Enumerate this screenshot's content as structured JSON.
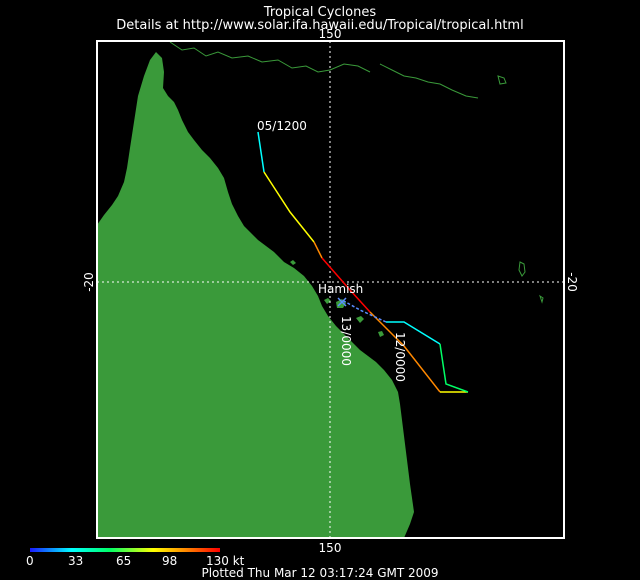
{
  "header": {
    "title": "Tropical Cyclones",
    "subtitle": "Details at http://www.solar.ifa.hawaii.edu/Tropical/tropical.html"
  },
  "map": {
    "longitude_label": "150",
    "latitude_label": "-20",
    "colors": {
      "land": "#3a9a3a",
      "ocean": "#000000",
      "frame": "#ffffff",
      "grid": "#ffffff"
    }
  },
  "storm": {
    "name": "Hamish",
    "labels": {
      "start": "05/1200",
      "forecast_a": "12/0000",
      "forecast_b": "13/0000"
    }
  },
  "intensity_scale": {
    "unit": "kt",
    "ticks": [
      "0",
      "33",
      "65",
      "98",
      "130 kt"
    ],
    "colors": [
      "#1a1aff",
      "#00ffff",
      "#00ff66",
      "#ffff00",
      "#ff8800",
      "#ff0000"
    ]
  },
  "footer": {
    "plotted": "Plotted Thu Mar 12 03:17:24 GMT 2009"
  }
}
